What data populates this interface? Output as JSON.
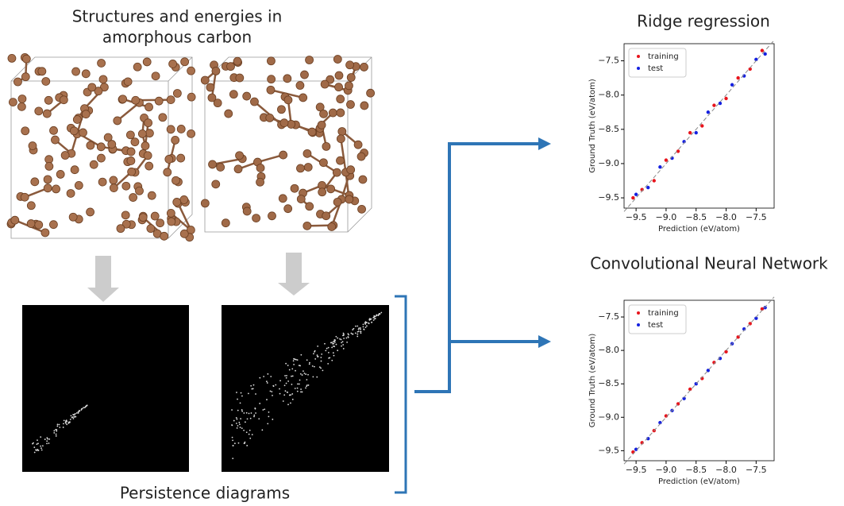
{
  "title_lines": [
    "Structures and energies in",
    "amorphous carbon"
  ],
  "caption": "Persistence diagrams",
  "chart_data": [
    {
      "type": "scatter",
      "title": "Ridge regression",
      "xlabel": "Prediction (eV/atom)",
      "ylabel": "Ground Truth (eV/atom)",
      "xlim": [
        -9.7,
        -7.2
      ],
      "ylim": [
        -9.65,
        -7.25
      ],
      "xticks": [
        {
          "value": -9.5,
          "label": "−9.5"
        },
        {
          "value": -9.0,
          "label": "−9.0"
        },
        {
          "value": -8.5,
          "label": "−8.5"
        },
        {
          "value": -8.0,
          "label": "−8.0"
        },
        {
          "value": -7.5,
          "label": "−7.5"
        }
      ],
      "yticks": [
        {
          "value": -9.5,
          "label": "−9.5"
        },
        {
          "value": -9.0,
          "label": "−9.0"
        },
        {
          "value": -8.5,
          "label": "−8.5"
        },
        {
          "value": -8.0,
          "label": "−8.0"
        },
        {
          "value": -7.5,
          "label": "−7.5"
        }
      ],
      "legend": "upper left",
      "series": [
        {
          "name": "training",
          "color": "#e8141c",
          "x": [
            -9.55,
            -9.4,
            -9.2,
            -9.0,
            -8.8,
            -8.6,
            -8.4,
            -8.2,
            -8.0,
            -7.8,
            -7.6,
            -7.4
          ],
          "y": [
            -9.5,
            -9.38,
            -9.25,
            -8.95,
            -8.82,
            -8.55,
            -8.45,
            -8.15,
            -8.05,
            -7.75,
            -7.62,
            -7.35
          ]
        },
        {
          "name": "test",
          "color": "#1420e0",
          "x": [
            -9.5,
            -9.3,
            -9.1,
            -8.9,
            -8.7,
            -8.5,
            -8.3,
            -8.1,
            -7.9,
            -7.7,
            -7.5,
            -7.35
          ],
          "y": [
            -9.45,
            -9.35,
            -9.05,
            -8.92,
            -8.68,
            -8.55,
            -8.25,
            -8.12,
            -7.85,
            -7.72,
            -7.48,
            -7.4
          ]
        }
      ]
    },
    {
      "type": "scatter",
      "title": "Convolutional Neural Network",
      "xlabel": "Prediction (eV/atom)",
      "ylabel": "Ground Truth (eV/atom)",
      "xlim": [
        -9.7,
        -7.2
      ],
      "ylim": [
        -9.65,
        -7.25
      ],
      "xticks": [
        {
          "value": -9.5,
          "label": "−9.5"
        },
        {
          "value": -9.0,
          "label": "−9.0"
        },
        {
          "value": -8.5,
          "label": "−8.5"
        },
        {
          "value": -8.0,
          "label": "−8.0"
        },
        {
          "value": -7.5,
          "label": "−7.5"
        }
      ],
      "yticks": [
        {
          "value": -9.5,
          "label": "−9.5"
        },
        {
          "value": -9.0,
          "label": "−9.0"
        },
        {
          "value": -8.5,
          "label": "−8.5"
        },
        {
          "value": -8.0,
          "label": "−8.0"
        },
        {
          "value": -7.5,
          "label": "−7.5"
        }
      ],
      "legend": "upper left",
      "series": [
        {
          "name": "training",
          "color": "#e8141c",
          "x": [
            -9.55,
            -9.4,
            -9.2,
            -9.0,
            -8.8,
            -8.6,
            -8.4,
            -8.2,
            -8.0,
            -7.8,
            -7.6,
            -7.4
          ],
          "y": [
            -9.52,
            -9.38,
            -9.2,
            -8.98,
            -8.8,
            -8.58,
            -8.42,
            -8.18,
            -8.02,
            -7.8,
            -7.6,
            -7.38
          ]
        },
        {
          "name": "test",
          "color": "#1420e0",
          "x": [
            -9.5,
            -9.3,
            -9.1,
            -8.9,
            -8.7,
            -8.5,
            -8.3,
            -8.1,
            -7.9,
            -7.7,
            -7.5,
            -7.35
          ],
          "y": [
            -9.48,
            -9.32,
            -9.08,
            -8.9,
            -8.72,
            -8.5,
            -8.3,
            -8.12,
            -7.9,
            -7.68,
            -7.52,
            -7.36
          ]
        }
      ]
    }
  ]
}
